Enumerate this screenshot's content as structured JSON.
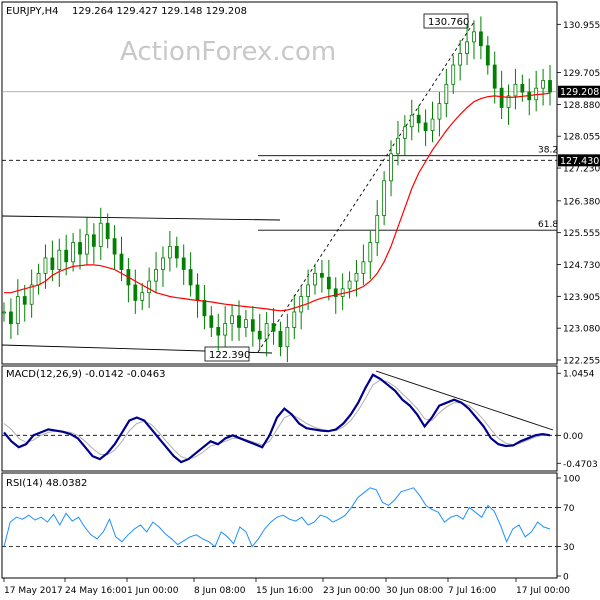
{
  "header": {
    "symbol": "EURJPY,H4",
    "ohlc": "129.264 129.427 129.148 129.208"
  },
  "watermark": "ActionForex.com",
  "colors": {
    "candle": "#008000",
    "ma": "#ff0000",
    "macd_main": "#00008b",
    "macd_signal": "#b0b0b0",
    "rsi": "#1e90ff",
    "trendline": "#000000",
    "level_dashed": "#000000",
    "grid_divider": "#000000"
  },
  "chart_data": [
    {
      "type": "candlestick",
      "panel": "price",
      "title": "EURJPY,H4",
      "ylim": [
        122.255,
        131.43
      ],
      "ticks": [
        "130.955",
        "129.705",
        "128.880",
        "128.055",
        "127.230",
        "126.380",
        "125.555",
        "124.730",
        "123.905",
        "123.080",
        "122.255"
      ],
      "tick_values": [
        130.955,
        129.705,
        128.88,
        128.055,
        127.23,
        126.38,
        125.555,
        124.73,
        123.905,
        123.08,
        122.255
      ],
      "last_price": "129.208",
      "last_price_value": 129.208,
      "annotations": {
        "high_label": "130.760",
        "high_value": 130.76,
        "low_label": "122.390",
        "low_value": 122.39,
        "fib_382_label": "38.2",
        "fib_382_value": 127.55,
        "fib_618_label": "61.8",
        "fib_618_value": 125.62,
        "support_label": "127.430",
        "support_value": 127.43
      },
      "close_series": [
        123.5,
        123.2,
        123.9,
        123.7,
        124.2,
        124.5,
        124.9,
        124.6,
        125.1,
        124.8,
        125.3,
        125.0,
        125.5,
        125.2,
        125.8,
        125.4,
        125.0,
        124.6,
        124.2,
        123.8,
        124.0,
        124.3,
        124.6,
        124.9,
        125.2,
        124.9,
        124.6,
        124.2,
        123.8,
        123.4,
        123.1,
        122.9,
        123.2,
        123.4,
        123.1,
        123.3,
        123.0,
        122.8,
        123.2,
        123.0,
        122.6,
        123.1,
        123.5,
        123.9,
        124.2,
        124.5,
        124.4,
        124.1,
        123.9,
        124.1,
        124.3,
        124.5,
        124.8,
        125.3,
        126.0,
        126.9,
        127.6,
        128.0,
        128.3,
        128.6,
        128.4,
        128.2,
        128.5,
        128.9,
        129.4,
        129.9,
        130.2,
        130.5,
        130.76,
        130.4,
        129.9,
        129.3,
        128.8,
        129.1,
        129.4,
        129.2,
        129.0,
        129.3,
        129.5,
        129.2
      ],
      "ma_series": [
        124.0,
        124.0,
        124.05,
        124.1,
        124.15,
        124.2,
        124.3,
        124.45,
        124.55,
        124.62,
        124.68,
        124.7,
        124.72,
        124.72,
        124.7,
        124.65,
        124.6,
        124.5,
        124.4,
        124.3,
        124.2,
        124.1,
        124.0,
        123.95,
        123.9,
        123.87,
        123.85,
        123.82,
        123.8,
        123.78,
        123.76,
        123.73,
        123.7,
        123.68,
        123.66,
        123.64,
        123.62,
        123.6,
        123.58,
        123.55,
        123.53,
        123.55,
        123.6,
        123.66,
        123.72,
        123.8,
        123.86,
        123.9,
        123.94,
        123.98,
        124.02,
        124.08,
        124.16,
        124.3,
        124.5,
        124.8,
        125.2,
        125.7,
        126.2,
        126.7,
        127.1,
        127.4,
        127.7,
        127.95,
        128.2,
        128.42,
        128.62,
        128.8,
        128.95,
        129.03,
        129.08,
        129.1,
        129.08,
        129.06,
        129.07,
        129.09,
        129.11,
        129.13,
        129.15,
        129.17
      ]
    },
    {
      "type": "line",
      "panel": "macd",
      "title": "MACD(12,26,9) -0.0142 -0.0463",
      "ylim": [
        -0.55,
        1.1
      ],
      "ticks": [
        "1.0454",
        "0.00",
        "-0.4703"
      ],
      "tick_values": [
        1.0454,
        0.0,
        -0.4703
      ],
      "series": [
        {
          "name": "main",
          "values": [
            0.05,
            -0.1,
            -0.2,
            -0.15,
            0.0,
            0.05,
            0.1,
            0.08,
            0.06,
            0.02,
            -0.05,
            -0.2,
            -0.35,
            -0.4,
            -0.3,
            -0.15,
            0.05,
            0.25,
            0.3,
            0.25,
            0.1,
            -0.05,
            -0.2,
            -0.35,
            -0.45,
            -0.4,
            -0.3,
            -0.2,
            -0.1,
            -0.15,
            -0.05,
            0.0,
            -0.05,
            -0.1,
            -0.15,
            -0.2,
            0.0,
            0.3,
            0.45,
            0.35,
            0.2,
            0.12,
            0.1,
            0.08,
            0.07,
            0.1,
            0.2,
            0.35,
            0.55,
            0.8,
            1.02,
            0.95,
            0.85,
            0.75,
            0.6,
            0.5,
            0.35,
            0.15,
            0.3,
            0.5,
            0.55,
            0.6,
            0.55,
            0.45,
            0.3,
            0.15,
            -0.05,
            -0.15,
            -0.18,
            -0.17,
            -0.1,
            -0.05,
            0.0,
            0.02,
            0.0
          ]
        },
        {
          "name": "signal",
          "values": [
            0.2,
            0.1,
            -0.05,
            -0.12,
            -0.08,
            0.0,
            0.05,
            0.07,
            0.07,
            0.05,
            0.0,
            -0.1,
            -0.22,
            -0.32,
            -0.33,
            -0.25,
            -0.1,
            0.08,
            0.2,
            0.24,
            0.18,
            0.05,
            -0.1,
            -0.24,
            -0.36,
            -0.4,
            -0.36,
            -0.28,
            -0.18,
            -0.15,
            -0.1,
            -0.05,
            -0.05,
            -0.08,
            -0.12,
            -0.16,
            -0.1,
            0.1,
            0.3,
            0.35,
            0.28,
            0.2,
            0.14,
            0.1,
            0.08,
            0.08,
            0.14,
            0.25,
            0.42,
            0.62,
            0.85,
            0.93,
            0.9,
            0.82,
            0.7,
            0.58,
            0.45,
            0.28,
            0.25,
            0.38,
            0.48,
            0.55,
            0.55,
            0.5,
            0.4,
            0.26,
            0.1,
            -0.05,
            -0.13,
            -0.16,
            -0.13,
            -0.08,
            -0.03,
            0.0,
            0.0
          ]
        }
      ],
      "trendline_label": ""
    },
    {
      "type": "line",
      "panel": "rsi",
      "title": "RSI(14) 48.0382",
      "ylim": [
        0,
        100
      ],
      "ticks": [
        "100",
        "70",
        "30",
        "0"
      ],
      "tick_values": [
        100,
        70,
        30,
        0
      ],
      "series": [
        {
          "name": "RSI(14)",
          "values": [
            30,
            55,
            60,
            58,
            62,
            57,
            60,
            55,
            63,
            52,
            64,
            56,
            60,
            50,
            42,
            38,
            45,
            58,
            40,
            35,
            42,
            48,
            52,
            45,
            55,
            50,
            43,
            38,
            32,
            36,
            40,
            42,
            38,
            35,
            30,
            45,
            40,
            33,
            50,
            45,
            30,
            38,
            48,
            55,
            60,
            62,
            58,
            56,
            60,
            52,
            55,
            62,
            60,
            55,
            58,
            62,
            70,
            80,
            85,
            90,
            88,
            75,
            72,
            78,
            86,
            88,
            90,
            82,
            72,
            68,
            65,
            55,
            60,
            62,
            58,
            70,
            65,
            60,
            72,
            66,
            52,
            35,
            48,
            52,
            40,
            45,
            55,
            50,
            48
          ]
        }
      ]
    }
  ],
  "x_axis": {
    "ticks": [
      "17 May 2017",
      "24 May 16:00",
      "1 Jun 00:00",
      "8 Jun 08:00",
      "15 Jun 16:00",
      "23 Jun 00:00",
      "30 Jun 08:00",
      "7 Jul 16:00",
      "17 Jul 00:00"
    ]
  }
}
